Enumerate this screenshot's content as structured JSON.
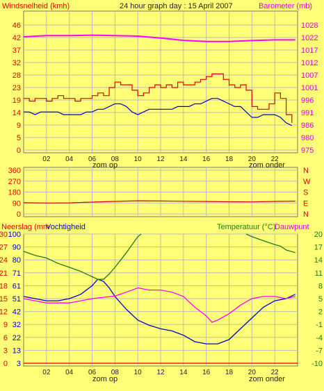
{
  "chart_data": [
    {
      "type": "line",
      "title": "24 hour graph day : 15 April 2007",
      "left_axis_label": "Windsnelheid (kmh)",
      "right_axis_label": "Barometer (mb)",
      "left_ticks": [
        "46",
        "42",
        "37",
        "32",
        "28",
        "23",
        "19",
        "14",
        "9",
        "5",
        "0"
      ],
      "right_ticks": [
        "1028",
        "1022",
        "1017",
        "1012",
        "1007",
        "1001",
        "996",
        "991",
        "986",
        "980",
        "975"
      ],
      "x_ticks": [
        "02",
        "04",
        "06",
        "08",
        "10",
        "12",
        "14",
        "16",
        "18",
        "20",
        "22"
      ],
      "xlim": [
        0,
        24
      ],
      "ylim_left": [
        0,
        46
      ],
      "ylim_right": [
        975,
        1028
      ],
      "annotations": [
        "zom op",
        "zom onder"
      ],
      "series": [
        {
          "color": "#dd0000",
          "axis": "left",
          "x": [
            0,
            0.5,
            1,
            1.5,
            2,
            2.5,
            3,
            3.5,
            4,
            4.5,
            5,
            5.5,
            6,
            6.5,
            7,
            7.5,
            8,
            8.5,
            9,
            9.5,
            10,
            10.5,
            11,
            11.5,
            12,
            12.5,
            13,
            13.5,
            14,
            14.5,
            15,
            15.5,
            16,
            16.5,
            17,
            17.5,
            18,
            18.5,
            19,
            19.5,
            20,
            20.5,
            21,
            21.5,
            22,
            22.5,
            23,
            23.5
          ],
          "values": [
            19,
            18,
            19,
            19,
            18,
            19,
            20,
            19,
            19,
            18,
            19,
            19,
            20,
            21,
            20,
            23,
            25,
            24,
            24,
            22,
            20,
            21,
            23,
            24,
            23,
            24,
            23,
            25,
            24,
            24,
            25,
            26,
            27,
            28,
            28,
            26,
            24,
            23,
            24,
            22,
            16,
            15,
            15,
            17,
            21,
            19,
            13,
            10
          ]
        },
        {
          "color": "#0000cc",
          "axis": "left",
          "x": [
            0,
            0.5,
            1,
            1.5,
            2,
            2.5,
            3,
            3.5,
            4,
            4.5,
            5,
            5.5,
            6,
            6.5,
            7,
            7.5,
            8,
            8.5,
            9,
            9.5,
            10,
            10.5,
            11,
            11.5,
            12,
            12.5,
            13,
            13.5,
            14,
            14.5,
            15,
            15.5,
            16,
            16.5,
            17,
            17.5,
            18,
            18.5,
            19,
            19.5,
            20,
            20.5,
            21,
            21.5,
            22,
            22.5,
            23,
            23.5
          ],
          "values": [
            14,
            14,
            13,
            14,
            14,
            14,
            14,
            13,
            13,
            13,
            13,
            14,
            14,
            15,
            15,
            16,
            17,
            17,
            16,
            14,
            13,
            14,
            15,
            15,
            15,
            15,
            15,
            16,
            16,
            16,
            17,
            17,
            18,
            19,
            19,
            18,
            17,
            16,
            16,
            14,
            12,
            12,
            13,
            13,
            13,
            12,
            10,
            9
          ]
        },
        {
          "color": "#ff00ff",
          "axis": "right",
          "x": [
            0,
            2,
            4,
            6,
            8,
            10,
            12,
            14,
            16,
            18,
            20,
            22,
            23.8
          ],
          "values": [
            1023,
            1023.5,
            1023.5,
            1023.7,
            1023.5,
            1023.3,
            1022.5,
            1021.5,
            1021,
            1021,
            1021.4,
            1021.7,
            1021.7
          ]
        }
      ]
    },
    {
      "type": "line",
      "left_ticks": [
        "360",
        "270",
        "180",
        "90",
        "0"
      ],
      "right_ticks": [
        "N",
        "W",
        "S",
        "E",
        "N"
      ],
      "x_ticks": [
        "02",
        "04",
        "06",
        "08",
        "10",
        "12",
        "14",
        "16",
        "18",
        "20",
        "22"
      ],
      "xlim": [
        0,
        24
      ],
      "ylim": [
        0,
        360
      ],
      "series": [
        {
          "color": "#dd0000",
          "x": [
            0,
            2,
            4,
            6,
            8,
            10,
            12,
            14,
            16,
            18,
            20,
            22,
            23.8
          ],
          "values": [
            92,
            90,
            91,
            97,
            103,
            108,
            106,
            104,
            102,
            100,
            99,
            103,
            105
          ]
        }
      ]
    },
    {
      "type": "line",
      "left_label_a": "Neerslag (mm",
      "left_label_b": "Vochtigheid",
      "right_label_a": "Temperatuur (°C)",
      "right_label_b": "Dauwpunt",
      "left_ticks_rain": [
        "30",
        "27",
        "24",
        "21",
        "18",
        "15",
        "12",
        "9",
        "6",
        "3",
        "0"
      ],
      "left_ticks_hum": [
        "100",
        "90",
        "80",
        "71",
        "61",
        "51",
        "42",
        "32",
        "22",
        "13",
        "3"
      ],
      "right_ticks": [
        "20",
        "17",
        "14",
        "11",
        "8",
        "5",
        "2",
        "-1",
        "-4",
        "-7",
        "-10"
      ],
      "x_ticks": [
        "02",
        "04",
        "06",
        "08",
        "10",
        "12",
        "14",
        "16",
        "18",
        "20",
        "22"
      ],
      "xlim": [
        0,
        24
      ],
      "ylim_left_rain": [
        0,
        30
      ],
      "ylim_left_humidity": [
        3,
        100
      ],
      "ylim_right": [
        -10,
        20
      ],
      "annotations": [
        "zom op",
        "zom onder"
      ],
      "series": [
        {
          "color": "#0000cc",
          "axis": "left",
          "x": [
            0,
            1,
            2,
            3,
            4,
            5,
            6,
            6.5,
            7,
            7.5,
            8,
            9,
            10,
            11,
            12,
            13,
            14,
            15,
            16,
            17,
            18,
            19,
            20,
            21,
            22,
            23,
            23.8
          ],
          "values": [
            5.5,
            5,
            4.5,
            4.5,
            5,
            6,
            8,
            9.5,
            9,
            7.5,
            5.5,
            2.5,
            0,
            -1.2,
            -2,
            -2.5,
            -3.5,
            -5,
            -5.5,
            -5.5,
            -4.5,
            -2,
            0.5,
            3,
            4.5,
            5,
            6
          ]
        },
        {
          "color": "#ff00ff",
          "axis": "right",
          "x": [
            0,
            1,
            2,
            3,
            4,
            5,
            6,
            7,
            8,
            9,
            10,
            11,
            12,
            13,
            14,
            15,
            16,
            16.5,
            17,
            18,
            19,
            20,
            21,
            22,
            23,
            23.8
          ],
          "values": [
            5,
            4.5,
            4,
            4,
            4,
            4.5,
            5,
            5.3,
            5.6,
            6.5,
            7.5,
            7,
            7,
            6.5,
            5.5,
            3,
            1,
            -0.5,
            0,
            1.5,
            3.5,
            5,
            5.5,
            5.5,
            5,
            5.5
          ]
        },
        {
          "color": "#1e7a1e",
          "axis": "left-humidity",
          "x": [
            0,
            1,
            2,
            3,
            4,
            5,
            6,
            6.5,
            7,
            7.5,
            8,
            9,
            10,
            10.3
          ],
          "values": [
            87,
            84,
            82,
            78,
            75,
            72,
            68,
            66,
            66,
            70,
            75,
            86,
            98,
            100
          ]
        },
        {
          "color": "#1e7a1e",
          "axis": "left-humidity",
          "x": [
            19.5,
            20,
            21,
            22,
            22.5,
            23,
            23.8
          ],
          "values": [
            100,
            98,
            95,
            92,
            91,
            88,
            86
          ]
        },
        {
          "color": "#dd0000",
          "axis": "left-rain",
          "x": [
            0,
            24
          ],
          "values": [
            0,
            0
          ]
        }
      ]
    }
  ]
}
